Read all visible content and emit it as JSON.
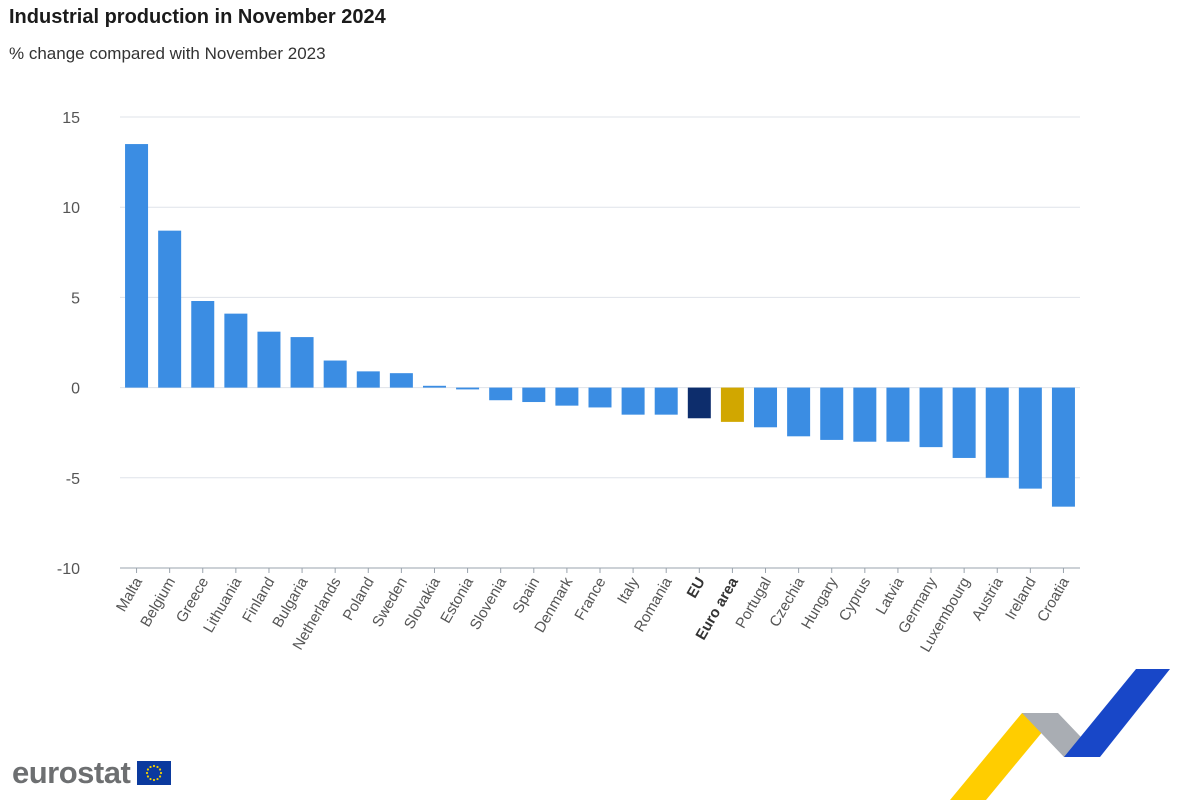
{
  "title": "Industrial production in November 2024",
  "subtitle": "% change compared with November 2023",
  "logo_text": "eurostat",
  "colors": {
    "country": "#3b8de3",
    "eu": "#0d2d6c",
    "euro_area": "#d1a700",
    "grid": "#dfe3ea",
    "axis_label": "#555555"
  },
  "chart_data": {
    "type": "bar",
    "title": "Industrial production in November 2024",
    "subtitle": "% change compared with November 2023",
    "xlabel": "",
    "ylabel": "",
    "ylim": [
      -10,
      15
    ],
    "yticks": [
      15,
      10,
      5,
      0,
      -5,
      -10
    ],
    "grid": true,
    "categories": [
      "Malta",
      "Belgium",
      "Greece",
      "Lithuania",
      "Finland",
      "Bulgaria",
      "Netherlands",
      "Poland",
      "Sweden",
      "Slovakia",
      "Estonia",
      "Slovenia",
      "Spain",
      "Denmark",
      "France",
      "Italy",
      "Romania",
      "EU",
      "Euro area",
      "Portugal",
      "Czechia",
      "Hungary",
      "Cyprus",
      "Latvia",
      "Germany",
      "Luxembourg",
      "Austria",
      "Ireland",
      "Croatia"
    ],
    "values": [
      13.5,
      8.7,
      4.8,
      4.1,
      3.1,
      2.8,
      1.5,
      0.9,
      0.8,
      0.1,
      -0.1,
      -0.7,
      -0.8,
      -1.0,
      -1.1,
      -1.5,
      -1.5,
      -1.7,
      -1.9,
      -2.2,
      -2.7,
      -2.9,
      -3.0,
      -3.0,
      -3.3,
      -3.9,
      -5.0,
      -5.6,
      -6.6
    ],
    "highlight": {
      "EU": "eu",
      "Euro area": "euro_area"
    }
  }
}
